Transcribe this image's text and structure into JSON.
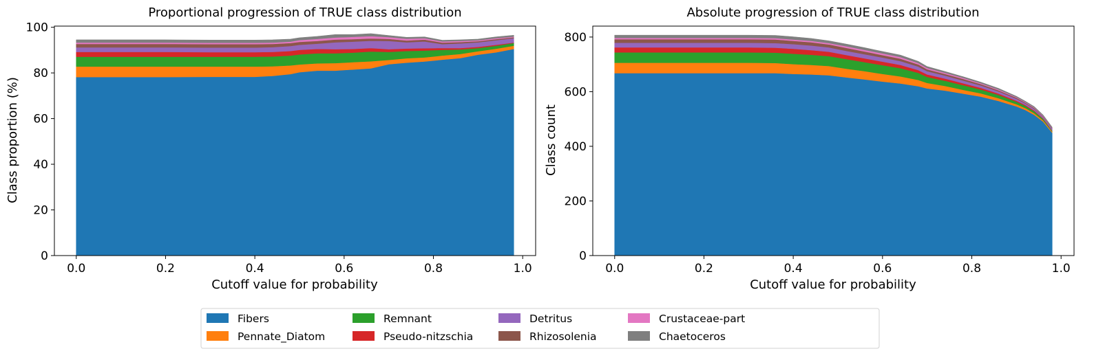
{
  "legend": {
    "location": "bottom-center",
    "ncol": 5,
    "entries": [
      {
        "name": "Fibers",
        "color": "#1f77b4"
      },
      {
        "name": "Pennate_Diatom",
        "color": "#ff7f0e"
      },
      {
        "name": "Remnant",
        "color": "#2ca02c"
      },
      {
        "name": "Pseudo-nitzschia",
        "color": "#d62728"
      },
      {
        "name": "Detritus",
        "color": "#9467bd"
      },
      {
        "name": "Rhizosolenia",
        "color": "#8c564b"
      },
      {
        "name": "Crustaceae-part",
        "color": "#e377c2"
      },
      {
        "name": "Chaetoceros",
        "color": "#7f7f7f"
      }
    ]
  },
  "chart_data": [
    {
      "type": "area",
      "stacked": true,
      "title": "Proportional progression of TRUE class distribution",
      "xlabel": "Cutoff value for probability",
      "ylabel": "Class proportion (%)",
      "xlim": [
        -0.049,
        1.029
      ],
      "ylim": [
        0,
        100.5
      ],
      "xticks": [
        "0.0",
        "0.2",
        "0.4",
        "0.6",
        "0.8",
        "1.0"
      ],
      "yticks": [
        "0",
        "20",
        "40",
        "60",
        "80",
        "100"
      ],
      "grid": false,
      "x": [
        0.0,
        0.1,
        0.2,
        0.3,
        0.4,
        0.44,
        0.48,
        0.5,
        0.54,
        0.58,
        0.62,
        0.66,
        0.7,
        0.74,
        0.78,
        0.82,
        0.86,
        0.9,
        0.94,
        0.98
      ],
      "series": [
        {
          "name": "Fibers",
          "values": [
            78.2,
            78.2,
            78.2,
            78.3,
            78.3,
            78.7,
            79.5,
            80.3,
            81.0,
            81.0,
            81.5,
            82.0,
            83.8,
            84.5,
            85.0,
            85.8,
            86.5,
            88.0,
            89.0,
            90.5
          ]
        },
        {
          "name": "Pennate_Diatom",
          "values": [
            4.6,
            4.6,
            4.6,
            4.5,
            4.5,
            4.2,
            3.8,
            3.4,
            3.2,
            3.3,
            3.2,
            3.1,
            1.9,
            1.9,
            1.8,
            1.8,
            1.8,
            1.5,
            1.6,
            1.4
          ]
        },
        {
          "name": "Remnant",
          "values": [
            4.3,
            4.3,
            4.3,
            4.3,
            4.3,
            4.3,
            4.3,
            4.4,
            4.4,
            4.3,
            4.2,
            4.3,
            3.5,
            3.2,
            3.0,
            2.5,
            2.0,
            1.4,
            1.3,
            1.2
          ]
        },
        {
          "name": "Pseudo-nitzschia",
          "values": [
            2.1,
            2.1,
            2.1,
            2.0,
            2.0,
            2.0,
            2.0,
            2.0,
            1.9,
            1.8,
            1.6,
            1.5,
            1.2,
            1.1,
            1.0,
            0.8,
            0.6,
            0.5,
            0.4,
            0.2
          ]
        },
        {
          "name": "Detritus",
          "values": [
            2.0,
            2.0,
            2.0,
            2.0,
            2.0,
            2.1,
            2.2,
            2.2,
            2.3,
            3.0,
            3.2,
            3.2,
            3.6,
            2.7,
            3.0,
            1.7,
            2.0,
            2.0,
            2.0,
            1.9
          ]
        },
        {
          "name": "Rhizosolenia",
          "values": [
            1.5,
            1.5,
            1.5,
            1.5,
            1.5,
            1.4,
            1.3,
            1.3,
            1.2,
            1.2,
            1.1,
            1.0,
            0.9,
            0.8,
            0.8,
            0.7,
            0.6,
            0.5,
            0.5,
            0.4
          ]
        },
        {
          "name": "Crustaceae-part",
          "values": [
            0.6,
            0.6,
            0.6,
            0.6,
            0.6,
            0.6,
            0.6,
            0.8,
            0.9,
            0.9,
            1.0,
            1.0,
            0.8,
            0.8,
            0.6,
            0.5,
            0.5,
            0.4,
            0.4,
            0.3
          ]
        },
        {
          "name": "Chaetoceros",
          "values": [
            1.2,
            1.2,
            1.2,
            1.2,
            1.2,
            1.2,
            1.1,
            1.0,
            1.1,
            1.3,
            1.0,
            1.1,
            0.7,
            0.6,
            0.6,
            0.5,
            0.5,
            0.5,
            0.6,
            0.6
          ]
        }
      ]
    },
    {
      "type": "area",
      "stacked": true,
      "title": "Absolute progression of TRUE class distribution",
      "xlabel": "Cutoff value for probability",
      "ylabel": "Class count",
      "xlim": [
        -0.049,
        1.029
      ],
      "ylim": [
        0,
        840
      ],
      "xticks": [
        "0.0",
        "0.2",
        "0.4",
        "0.6",
        "0.8",
        "1.0"
      ],
      "yticks": [
        "0",
        "200",
        "400",
        "600",
        "800"
      ],
      "grid": false,
      "x": [
        0.0,
        0.1,
        0.2,
        0.3,
        0.36,
        0.4,
        0.44,
        0.48,
        0.52,
        0.56,
        0.6,
        0.64,
        0.68,
        0.7,
        0.74,
        0.78,
        0.82,
        0.86,
        0.9,
        0.92,
        0.94,
        0.96,
        0.98
      ],
      "series": [
        {
          "name": "Fibers",
          "values": [
            668,
            668,
            668,
            668,
            668,
            665,
            663,
            660,
            652,
            645,
            637,
            630,
            620,
            612,
            604,
            593,
            582,
            566,
            546,
            533,
            515,
            490,
            450
          ]
        },
        {
          "name": "Pennate_Diatom",
          "values": [
            38,
            38,
            38,
            38,
            37,
            36,
            35,
            34,
            32,
            30,
            28,
            26,
            23,
            20,
            17,
            14,
            12,
            10,
            8,
            7,
            6,
            5,
            4
          ]
        },
        {
          "name": "Remnant",
          "values": [
            38,
            38,
            38,
            38,
            38,
            38,
            37,
            36,
            35,
            33,
            32,
            30,
            26,
            22,
            19,
            17,
            14,
            12,
            9,
            8,
            7,
            5,
            3
          ]
        },
        {
          "name": "Pseudo-nitzschia",
          "values": [
            18,
            18,
            18,
            18,
            18,
            18,
            17,
            16,
            15,
            14,
            13,
            12,
            10,
            9,
            8,
            7,
            6,
            5,
            4,
            3,
            3,
            2,
            1
          ]
        },
        {
          "name": "Detritus",
          "values": [
            17,
            17,
            17,
            17,
            17,
            17,
            17,
            16,
            15,
            15,
            15,
            14,
            13,
            12,
            11,
            10,
            9,
            8,
            7,
            6,
            6,
            5,
            6
          ]
        },
        {
          "name": "Rhizosolenia",
          "values": [
            13,
            13,
            13,
            13,
            13,
            12,
            12,
            11,
            11,
            10,
            9,
            9,
            8,
            7,
            6,
            6,
            5,
            4,
            4,
            3,
            3,
            2,
            2
          ]
        },
        {
          "name": "Crustaceae-part",
          "values": [
            5,
            5,
            5,
            5,
            5,
            5,
            5,
            5,
            6,
            6,
            6,
            6,
            5,
            5,
            4,
            4,
            3,
            3,
            2,
            2,
            2,
            2,
            1
          ]
        },
        {
          "name": "Chaetoceros",
          "values": [
            10,
            10,
            10,
            10,
            10,
            10,
            9,
            8,
            8,
            8,
            7,
            7,
            6,
            5,
            5,
            4,
            4,
            4,
            3,
            3,
            3,
            3,
            3
          ]
        }
      ]
    }
  ]
}
